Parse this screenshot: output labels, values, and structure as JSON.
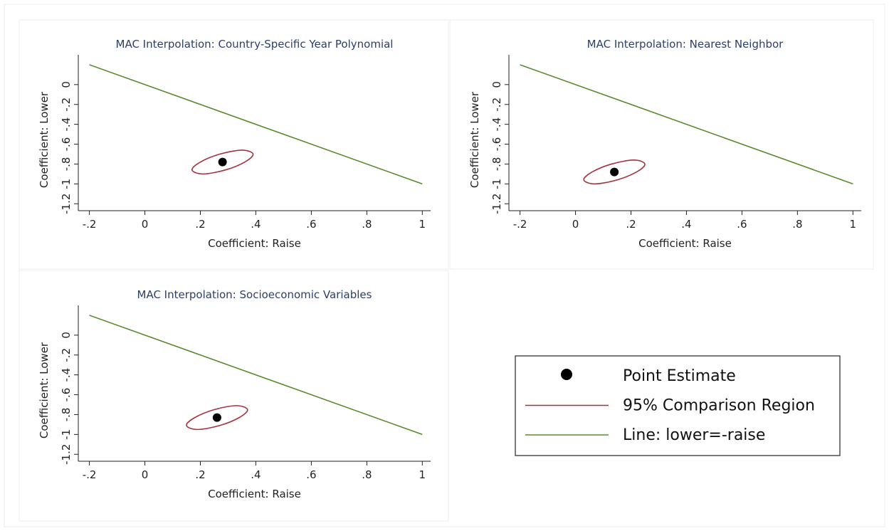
{
  "chart_data": [
    {
      "type": "scatter",
      "title": "MAC Interpolation: Country-Specific Year Polynomial",
      "xlabel": "Coefficient: Raise",
      "ylabel": "Coefficient: Lower",
      "xlim": [
        -0.24,
        1.03
      ],
      "ylim": [
        -1.27,
        0.3
      ],
      "xticks": [
        {
          "value": -0.2,
          "label": "-.2"
        },
        0,
        {
          "value": 0.2,
          "label": ".2"
        },
        {
          "value": 0.4,
          "label": ".4"
        },
        {
          "value": 0.6,
          "label": ".6"
        },
        {
          "value": 0.8,
          "label": ".8"
        },
        1
      ],
      "yticks": [
        {
          "value": -1.2,
          "label": "-1.2"
        },
        -1,
        {
          "value": -0.8,
          "label": "-.8"
        },
        {
          "value": -0.6,
          "label": "-.6"
        },
        {
          "value": -0.4,
          "label": "-.4"
        },
        {
          "value": -0.2,
          "label": "-.2"
        },
        0
      ],
      "series": [
        {
          "style": "marker",
          "color": "#000000",
          "x": [
            0.28
          ],
          "y": [
            -0.78
          ]
        },
        {
          "style": "closed-curve",
          "color": "#a3343f",
          "x": [
            0.39,
            0.36,
            0.29,
            0.21,
            0.17,
            0.2,
            0.27,
            0.35
          ],
          "y": [
            -0.7,
            -0.78,
            -0.86,
            -0.9,
            -0.86,
            -0.78,
            -0.7,
            -0.66
          ]
        },
        {
          "style": "line",
          "color": "#5b8a2f",
          "x": [
            -0.2,
            1
          ],
          "y": [
            0.2,
            -1
          ]
        }
      ]
    },
    {
      "type": "scatter",
      "title": "MAC Interpolation: Nearest Neighbor",
      "xlabel": "Coefficient: Raise",
      "ylabel": "Coefficient: Lower",
      "xlim": [
        -0.24,
        1.03
      ],
      "ylim": [
        -1.27,
        0.3
      ],
      "xticks": [
        {
          "value": -0.2,
          "label": "-.2"
        },
        0,
        {
          "value": 0.2,
          "label": ".2"
        },
        {
          "value": 0.4,
          "label": ".4"
        },
        {
          "value": 0.6,
          "label": ".6"
        },
        {
          "value": 0.8,
          "label": ".8"
        },
        1
      ],
      "yticks": [
        {
          "value": -1.2,
          "label": "-1.2"
        },
        -1,
        {
          "value": -0.8,
          "label": "-.8"
        },
        {
          "value": -0.6,
          "label": "-.6"
        },
        {
          "value": -0.4,
          "label": "-.4"
        },
        {
          "value": -0.2,
          "label": "-.2"
        },
        0
      ],
      "series": [
        {
          "style": "marker",
          "color": "#000000",
          "x": [
            0.14
          ],
          "y": [
            -0.88
          ]
        },
        {
          "style": "closed-curve",
          "color": "#a3343f",
          "x": [
            0.25,
            0.22,
            0.15,
            0.07,
            0.03,
            0.06,
            0.13,
            0.21
          ],
          "y": [
            -0.8,
            -0.88,
            -0.96,
            -1.0,
            -0.96,
            -0.88,
            -0.8,
            -0.76
          ]
        },
        {
          "style": "line",
          "color": "#5b8a2f",
          "x": [
            -0.2,
            1
          ],
          "y": [
            0.2,
            -1
          ]
        }
      ]
    },
    {
      "type": "scatter",
      "title": "MAC Interpolation: Socioeconomic Variables",
      "xlabel": "Coefficient: Raise",
      "ylabel": "Coefficient: Lower",
      "xlim": [
        -0.24,
        1.03
      ],
      "ylim": [
        -1.27,
        0.3
      ],
      "xticks": [
        {
          "value": -0.2,
          "label": "-.2"
        },
        0,
        {
          "value": 0.2,
          "label": ".2"
        },
        {
          "value": 0.4,
          "label": ".4"
        },
        {
          "value": 0.6,
          "label": ".6"
        },
        {
          "value": 0.8,
          "label": ".8"
        },
        1
      ],
      "yticks": [
        {
          "value": -1.2,
          "label": "-1.2"
        },
        -1,
        {
          "value": -0.8,
          "label": "-.8"
        },
        {
          "value": -0.6,
          "label": "-.6"
        },
        {
          "value": -0.4,
          "label": "-.4"
        },
        {
          "value": -0.2,
          "label": "-.2"
        },
        0
      ],
      "series": [
        {
          "style": "marker",
          "color": "#000000",
          "x": [
            0.26
          ],
          "y": [
            -0.83
          ]
        },
        {
          "style": "closed-curve",
          "color": "#a3343f",
          "x": [
            0.37,
            0.34,
            0.27,
            0.19,
            0.15,
            0.18,
            0.25,
            0.33
          ],
          "y": [
            -0.75,
            -0.83,
            -0.91,
            -0.95,
            -0.91,
            -0.83,
            -0.75,
            -0.71
          ]
        },
        {
          "style": "line",
          "color": "#5b8a2f",
          "x": [
            -0.2,
            1
          ],
          "y": [
            0.2,
            -1
          ]
        }
      ]
    }
  ],
  "legend": [
    "Point Estimate",
    "95% Comparison Region",
    "Line: lower=-raise"
  ]
}
